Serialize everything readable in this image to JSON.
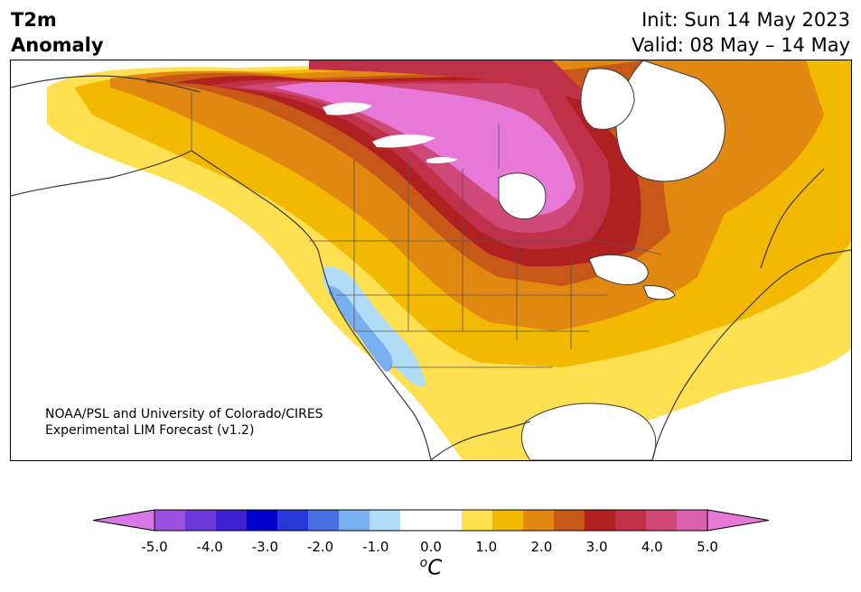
{
  "header": {
    "title_line1": "T2m",
    "title_line2": "Anomaly",
    "init": "Init: Sun 14 May 2023",
    "valid": "Valid: 08 May – 14 May"
  },
  "credit": {
    "line1": "NOAA/PSL and University of Colorado/CIRES",
    "line2": "Experimental LIM Forecast (v1.2)"
  },
  "colorbar": {
    "units_symbol": "o",
    "units_letter": "C",
    "ticks": [
      "-5.0",
      "-4.0",
      "-3.0",
      "-2.0",
      "-1.0",
      "0.0",
      "1.0",
      "2.0",
      "3.0",
      "4.0",
      "5.0"
    ],
    "colors": [
      "#d878e8",
      "#9b50e0",
      "#6a38d8",
      "#3a20d0",
      "#0000cc",
      "#2838d8",
      "#4870e0",
      "#78aff0",
      "#b0dcf8",
      "#ffffff",
      "#ffffff",
      "#ffe050",
      "#f3b800",
      "#e08810",
      "#c85818",
      "#b02020",
      "#c03048",
      "#d04878",
      "#dc60b0",
      "#e878d8"
    ]
  },
  "map": {
    "region": "North America",
    "variable": "2m temperature anomaly"
  }
}
